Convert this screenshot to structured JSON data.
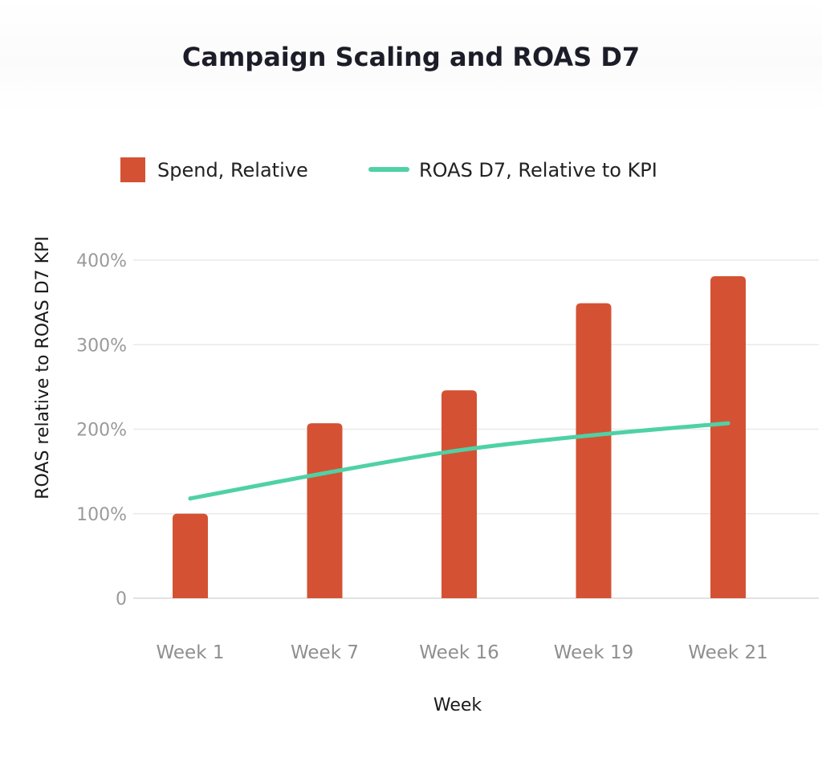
{
  "chart_data": {
    "type": "bar",
    "title": "Campaign Scaling and ROAS D7",
    "xlabel": "Week",
    "ylabel": "ROAS relative to ROAS D7 KPI",
    "categories": [
      "Week 1",
      "Week 7",
      "Week 16",
      "Week 19",
      "Week 21"
    ],
    "ylim": [
      0,
      400
    ],
    "yticks": [
      0,
      100,
      200,
      300,
      400
    ],
    "ytick_labels": [
      "0",
      "100%",
      "200%",
      "300%",
      "400%"
    ],
    "grid": true,
    "legend_position": "top",
    "series": [
      {
        "name": "Spend, Relative",
        "type": "bar",
        "color": "#d45233",
        "values": [
          100,
          207,
          246,
          349,
          381
        ]
      },
      {
        "name": "ROAS D7, Relative to KPI",
        "type": "line",
        "color": "#4fd1a5",
        "values": [
          118,
          148,
          175,
          193,
          207
        ]
      }
    ]
  }
}
